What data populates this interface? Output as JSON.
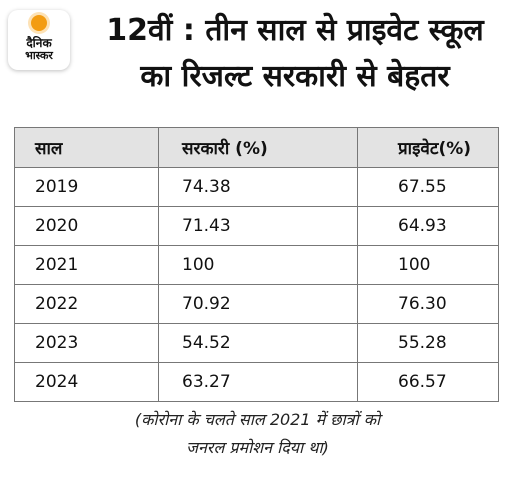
{
  "logo": {
    "line1": "दैनिक",
    "line2": "भास्कर",
    "accent": "#f39c12"
  },
  "title": {
    "line1": "12वीं : तीन साल से प्राइवेट स्कूल",
    "line2": "का रिजल्ट सरकारी से बेहतर"
  },
  "table": {
    "headers": [
      "साल",
      "सरकारी (%)",
      "प्राइवेट(%)"
    ],
    "rows": [
      [
        "2019",
        "74.38",
        "67.55"
      ],
      [
        "2020",
        "71.43",
        "64.93"
      ],
      [
        "2021",
        "100",
        "100"
      ],
      [
        "2022",
        "70.92",
        "76.30"
      ],
      [
        "2023",
        "54.52",
        "55.28"
      ],
      [
        "2024",
        "63.27",
        "66.57"
      ]
    ]
  },
  "note": {
    "line1": "(कोरोना के चलते साल 2021 में छात्रों को",
    "line2": "जनरल प्रमोशन दिया था)"
  }
}
